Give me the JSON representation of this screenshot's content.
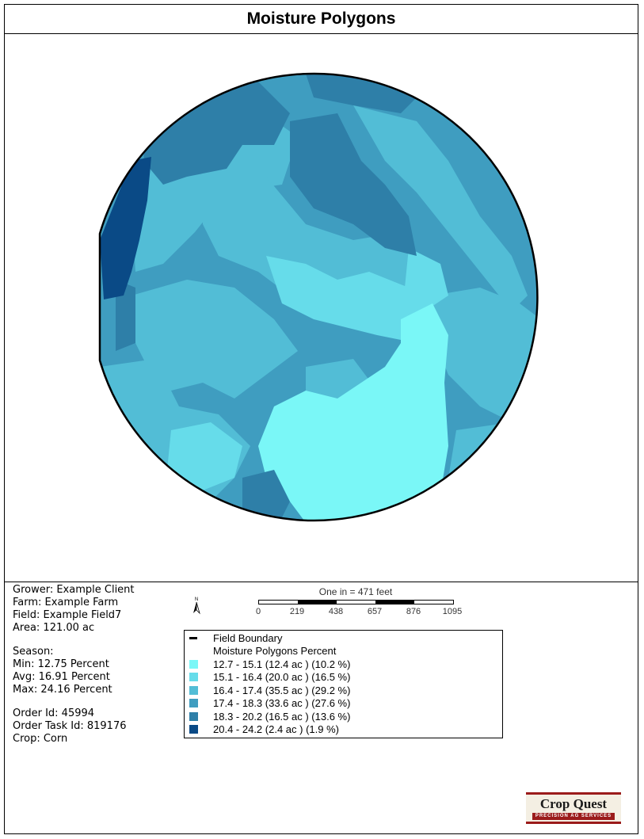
{
  "page": {
    "title": "Moisture Polygons"
  },
  "info": {
    "grower": "Grower: Example Client",
    "farm": "Farm: Example Farm",
    "field": "Field: Example Field7",
    "area": "Area: 121.00 ac",
    "season": "Season:",
    "min": "Min: 12.75 Percent",
    "avg": "Avg: 16.91 Percent",
    "max": "Max: 24.16 Percent",
    "order_id": "Order Id: 45994",
    "order_task_id": "Order Task Id: 819176",
    "crop": "Crop: Corn"
  },
  "north_arrow": {
    "label": "N",
    "icon": "north-arrow-icon"
  },
  "scale_bar": {
    "title": "One in = 471 feet",
    "ticks": [
      "0",
      "219",
      "438",
      "657",
      "876",
      "1095"
    ]
  },
  "legend": {
    "boundary_label": "Field Boundary",
    "layer_title": "Moisture Polygons Percent",
    "classes": [
      {
        "label": "12.7 - 15.1 (12.4 ac ) (10.2 %)",
        "color": "#7af7f7"
      },
      {
        "label": "15.1 - 16.4 (20.0 ac ) (16.5 %)",
        "color": "#66dcea"
      },
      {
        "label": "16.4 - 17.4 (35.5 ac ) (29.2 %)",
        "color": "#52bdd6"
      },
      {
        "label": "17.4 - 18.3 (33.6 ac ) (27.6 %)",
        "color": "#3f9dc0"
      },
      {
        "label": "18.3 - 20.2 (16.5 ac ) (13.6 %)",
        "color": "#2e7fa8"
      },
      {
        "label": "20.4 - 24.2 (2.4 ac ) (1.9 %)",
        "color": "#0a4a86"
      }
    ]
  },
  "logo": {
    "name": "Crop Quest",
    "tagline": "PRECISION AG SERVICES"
  }
}
